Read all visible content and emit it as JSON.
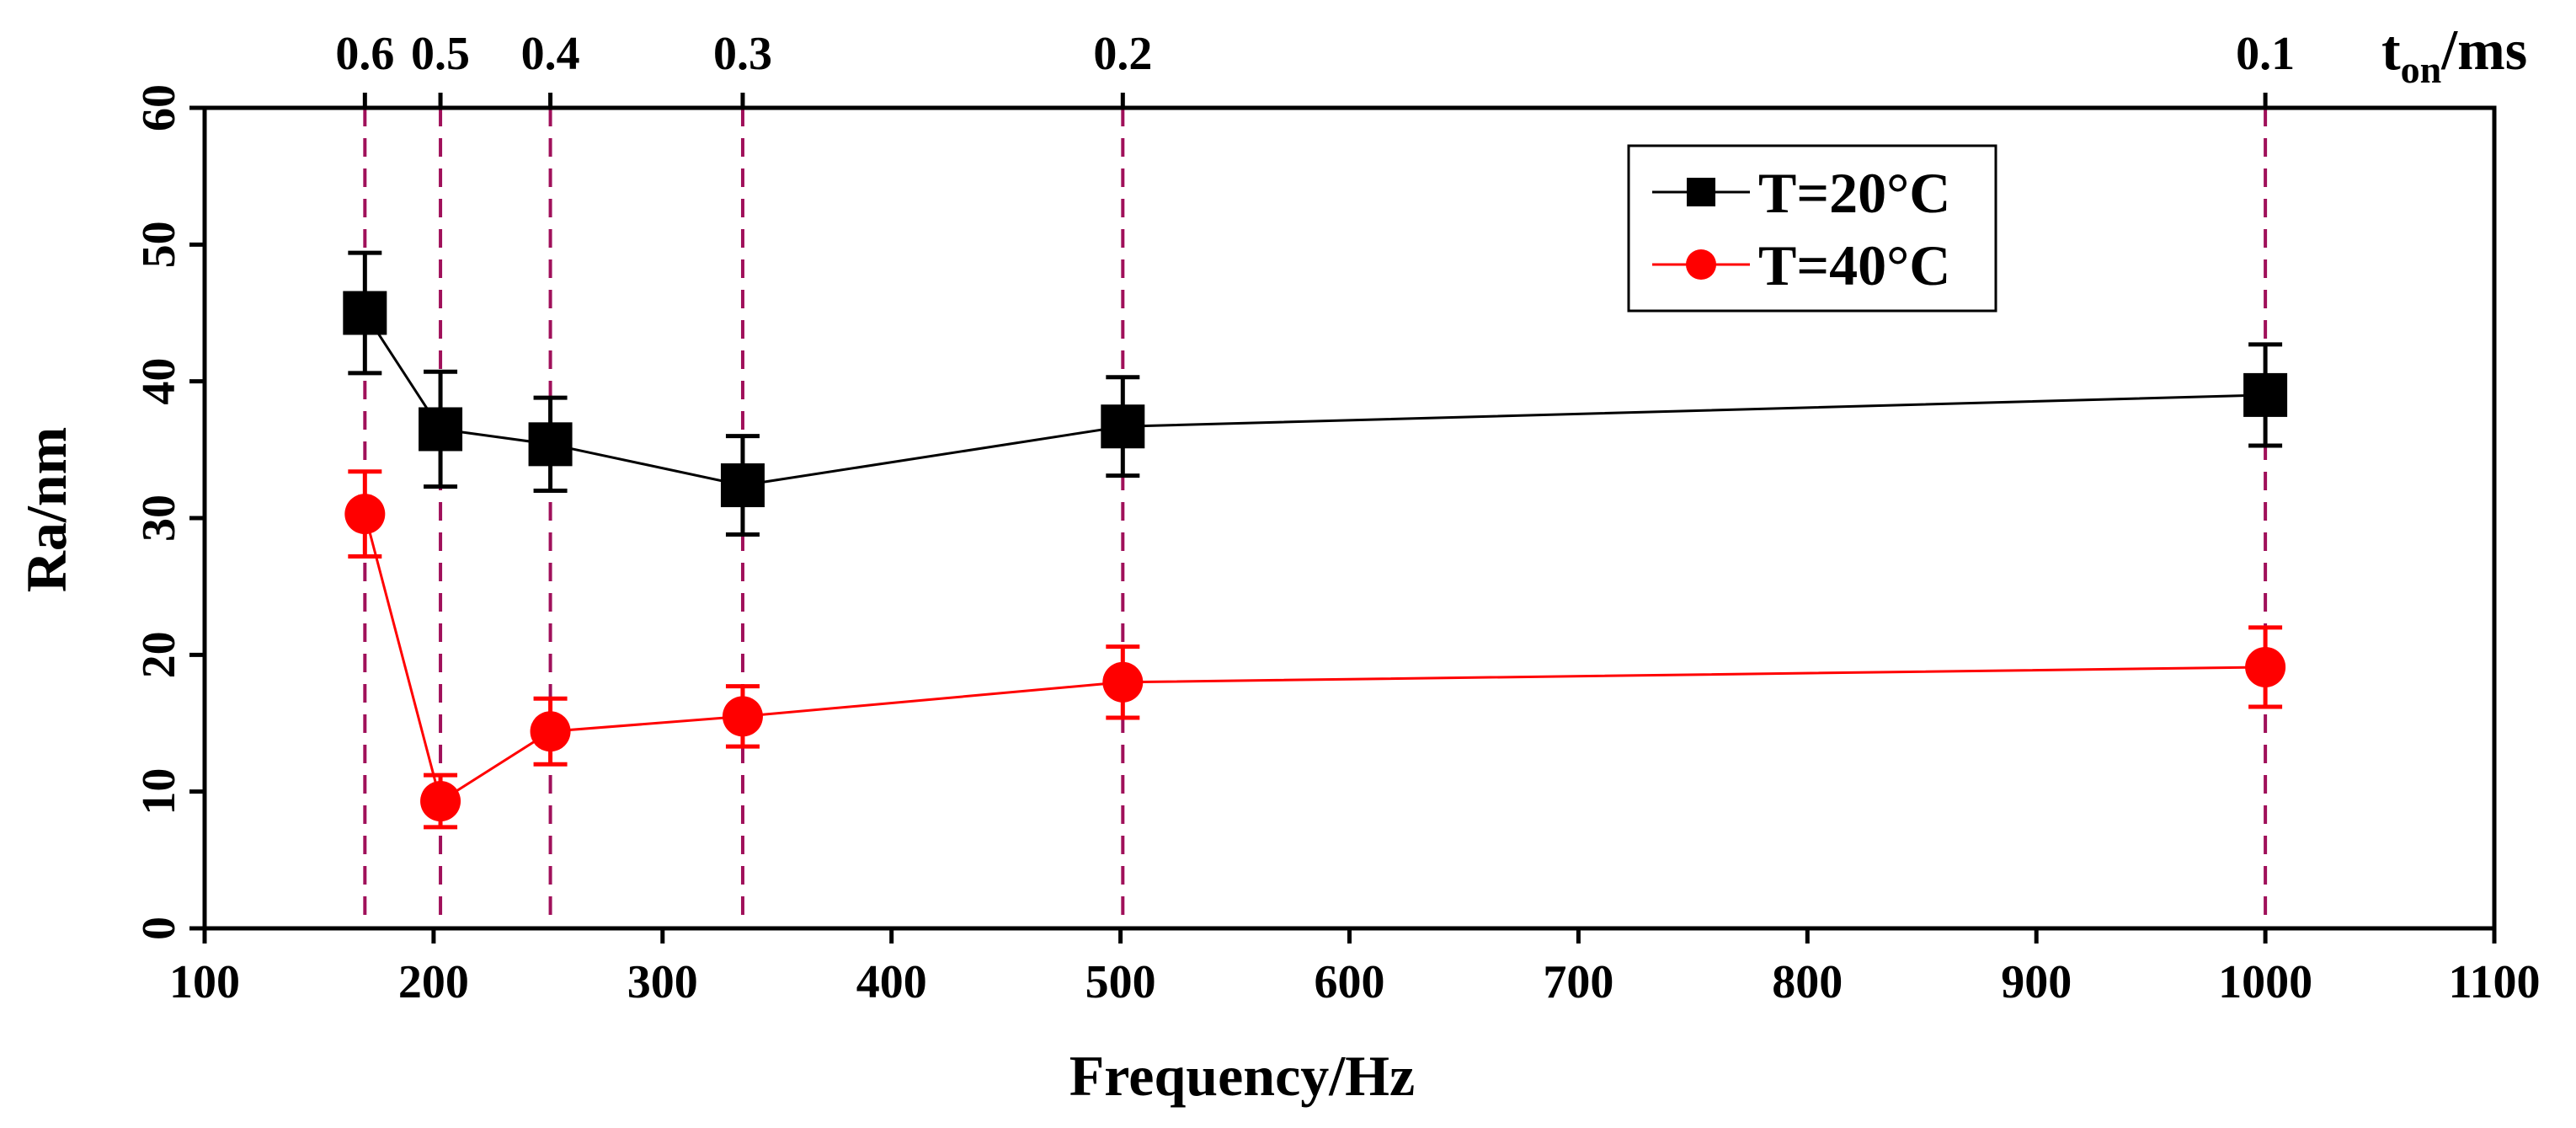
{
  "chart_data": {
    "type": "line",
    "title": "",
    "xlabel": "Frequency/Hz",
    "ylabel": "Ra/nm",
    "xlim": [
      100,
      1100
    ],
    "ylim": [
      0,
      60
    ],
    "x_ticks": [
      100,
      200,
      300,
      400,
      500,
      600,
      700,
      800,
      900,
      1000,
      1100
    ],
    "y_ticks": [
      0,
      10,
      20,
      30,
      40,
      50,
      60
    ],
    "top_axis": {
      "label_main": "t",
      "label_sub": "on",
      "label_unit": "/ms",
      "ticks": [
        {
          "x": 170,
          "label": "0.6"
        },
        {
          "x": 203,
          "label": "0.5"
        },
        {
          "x": 251,
          "label": "0.4"
        },
        {
          "x": 335,
          "label": "0.3"
        },
        {
          "x": 501,
          "label": "0.2"
        },
        {
          "x": 1000,
          "label": "0.1"
        }
      ]
    },
    "series": [
      {
        "name": "T=20°C",
        "color": "#000000",
        "marker": "square",
        "x": [
          170,
          203,
          251,
          335,
          501,
          1000
        ],
        "values": [
          45.0,
          36.5,
          35.4,
          32.4,
          36.7,
          39.0
        ],
        "error": [
          4.4,
          4.2,
          3.4,
          3.6,
          3.6,
          3.7
        ]
      },
      {
        "name": "T=40°C",
        "color": "#ff0000",
        "marker": "circle",
        "x": [
          170,
          203,
          251,
          335,
          501,
          1000
        ],
        "values": [
          30.3,
          9.3,
          14.4,
          15.5,
          18.0,
          19.1
        ],
        "error": [
          3.1,
          1.9,
          2.4,
          2.2,
          2.6,
          2.9
        ]
      }
    ],
    "legend_position": "top-right",
    "grid": false,
    "guide_line_color": "#a0105a"
  }
}
